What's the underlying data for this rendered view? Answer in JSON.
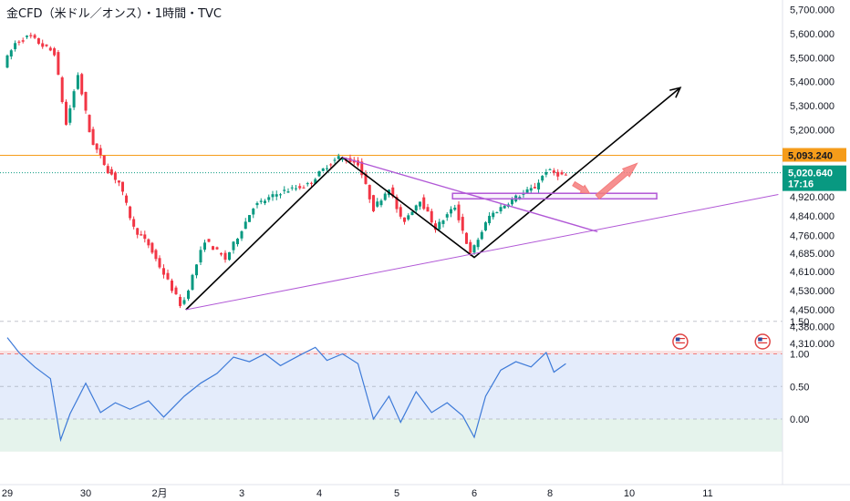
{
  "header": {
    "title": "金CFD（米ドル／オンス）・1時間・TVC"
  },
  "chart_data": [
    {
      "type": "candlestick",
      "title": "金CFD（米ドル／オンス）・1時間・TVC",
      "x_labels": [
        "29",
        "30",
        "2月",
        "3",
        "4",
        "5",
        "6",
        "8",
        "10",
        "11"
      ],
      "y_ticks": [
        "5,700.000",
        "5,600.000",
        "5,500.000",
        "5,400.000",
        "5,300.000",
        "5,200.000",
        "4,920.000",
        "4,840.000",
        "4,760.000",
        "4,685.000",
        "4,610.000",
        "4,530.000",
        "4,450.000",
        "4,380.000",
        "4,310.000"
      ],
      "ylim": [
        4300,
        5720
      ],
      "price_lines": [
        {
          "label": "5,093.240",
          "value": 5093.24,
          "color": "#f59c1a"
        },
        {
          "label": "5,020.640",
          "countdown": "17:16",
          "value": 5020.64,
          "color": "#089981"
        }
      ],
      "anchors": [
        {
          "x": 0.0,
          "y": 5470
        },
        {
          "x": 0.15,
          "y": 5560
        },
        {
          "x": 0.33,
          "y": 5590
        },
        {
          "x": 0.5,
          "y": 5550
        },
        {
          "x": 0.65,
          "y": 5520
        },
        {
          "x": 0.8,
          "y": 5220
        },
        {
          "x": 0.95,
          "y": 5430
        },
        {
          "x": 1.12,
          "y": 5160
        },
        {
          "x": 1.35,
          "y": 5030
        },
        {
          "x": 1.5,
          "y": 4980
        },
        {
          "x": 1.7,
          "y": 4790
        },
        {
          "x": 1.9,
          "y": 4720
        },
        {
          "x": 2.1,
          "y": 4600
        },
        {
          "x": 2.32,
          "y": 4460
        },
        {
          "x": 2.6,
          "y": 4740
        },
        {
          "x": 2.85,
          "y": 4660
        },
        {
          "x": 3.2,
          "y": 4880
        },
        {
          "x": 3.55,
          "y": 4940
        },
        {
          "x": 3.9,
          "y": 4970
        },
        {
          "x": 4.15,
          "y": 5050
        },
        {
          "x": 4.3,
          "y": 5085
        },
        {
          "x": 4.55,
          "y": 5060
        },
        {
          "x": 4.75,
          "y": 4870
        },
        {
          "x": 4.95,
          "y": 4960
        },
        {
          "x": 5.12,
          "y": 4810
        },
        {
          "x": 5.35,
          "y": 4910
        },
        {
          "x": 5.55,
          "y": 4790
        },
        {
          "x": 5.8,
          "y": 4880
        },
        {
          "x": 6.0,
          "y": 4680
        },
        {
          "x": 6.25,
          "y": 4840
        },
        {
          "x": 6.55,
          "y": 4910
        },
        {
          "x": 6.85,
          "y": 4960
        },
        {
          "x": 7.0,
          "y": 5030
        },
        {
          "x": 7.2,
          "y": 5010
        }
      ]
    },
    {
      "type": "line",
      "y_ticks": [
        "1.50",
        "1.00",
        "0.50",
        "0.00"
      ],
      "ylim": [
        -0.5,
        1.55
      ],
      "bands": [
        {
          "from": 1.0,
          "to": 1.55,
          "color": "#f9e1e1"
        },
        {
          "from": 0.0,
          "to": 1.0,
          "color": "#e4ecfb"
        },
        {
          "from": -0.5,
          "to": 0.0,
          "color": "#e5f3ec"
        }
      ],
      "series": [
        {
          "color": "#3d7ad8",
          "points": [
            {
              "x": 0.0,
              "y": 1.25
            },
            {
              "x": 0.15,
              "y": 1.02
            },
            {
              "x": 0.35,
              "y": 0.8
            },
            {
              "x": 0.55,
              "y": 0.62
            },
            {
              "x": 0.68,
              "y": -0.32
            },
            {
              "x": 0.8,
              "y": 0.08
            },
            {
              "x": 1.0,
              "y": 0.55
            },
            {
              "x": 1.2,
              "y": 0.1
            },
            {
              "x": 1.4,
              "y": 0.25
            },
            {
              "x": 1.6,
              "y": 0.15
            },
            {
              "x": 1.85,
              "y": 0.28
            },
            {
              "x": 2.05,
              "y": 0.03
            },
            {
              "x": 2.3,
              "y": 0.35
            },
            {
              "x": 2.5,
              "y": 0.55
            },
            {
              "x": 2.7,
              "y": 0.7
            },
            {
              "x": 2.9,
              "y": 0.95
            },
            {
              "x": 3.1,
              "y": 0.88
            },
            {
              "x": 3.3,
              "y": 1.0
            },
            {
              "x": 3.5,
              "y": 0.82
            },
            {
              "x": 3.75,
              "y": 0.98
            },
            {
              "x": 3.95,
              "y": 1.1
            },
            {
              "x": 4.1,
              "y": 0.9
            },
            {
              "x": 4.3,
              "y": 1.0
            },
            {
              "x": 4.5,
              "y": 0.85
            },
            {
              "x": 4.7,
              "y": 0.0
            },
            {
              "x": 4.9,
              "y": 0.35
            },
            {
              "x": 5.05,
              "y": -0.05
            },
            {
              "x": 5.25,
              "y": 0.42
            },
            {
              "x": 5.45,
              "y": 0.1
            },
            {
              "x": 5.65,
              "y": 0.25
            },
            {
              "x": 5.85,
              "y": 0.05
            },
            {
              "x": 6.0,
              "y": -0.28
            },
            {
              "x": 6.15,
              "y": 0.35
            },
            {
              "x": 6.35,
              "y": 0.75
            },
            {
              "x": 6.55,
              "y": 0.88
            },
            {
              "x": 6.75,
              "y": 0.8
            },
            {
              "x": 6.95,
              "y": 1.02
            },
            {
              "x": 7.05,
              "y": 0.72
            },
            {
              "x": 7.2,
              "y": 0.85
            }
          ]
        }
      ]
    }
  ],
  "drawings": {
    "black_polyline": [
      {
        "x": 2.32,
        "y": 4450
      },
      {
        "x": 4.3,
        "y": 5085
      },
      {
        "x": 6.0,
        "y": 4668
      },
      {
        "x": 8.65,
        "y": 5375
      }
    ],
    "purple_line_bottom": [
      {
        "x": 2.32,
        "y": 4450
      },
      {
        "x": 9.9,
        "y": 4930
      }
    ],
    "purple_line_top": [
      {
        "x": 4.3,
        "y": 5085
      },
      {
        "x": 7.6,
        "y": 4775
      }
    ],
    "purple_rect": {
      "x1": 5.72,
      "x2": 8.35,
      "y1": 4912,
      "y2": 4935
    },
    "red_arrow": {
      "from": {
        "x": 7.6,
        "y": 4920
      },
      "to": {
        "x": 8.1,
        "y": 5060
      }
    },
    "red_small_arrow": {
      "from": {
        "x": 7.3,
        "y": 4975
      },
      "to": {
        "x": 7.5,
        "y": 4935
      }
    },
    "colors": {
      "black": "#000000",
      "purple": "#b158d6",
      "red_arrow": "#f47c7c",
      "up": "#089981",
      "down": "#f23645"
    }
  },
  "event_flags": [
    {
      "x": 8.65,
      "icon": "us-flag-icon"
    },
    {
      "x": 9.7,
      "icon": "us-flag-icon"
    }
  ]
}
